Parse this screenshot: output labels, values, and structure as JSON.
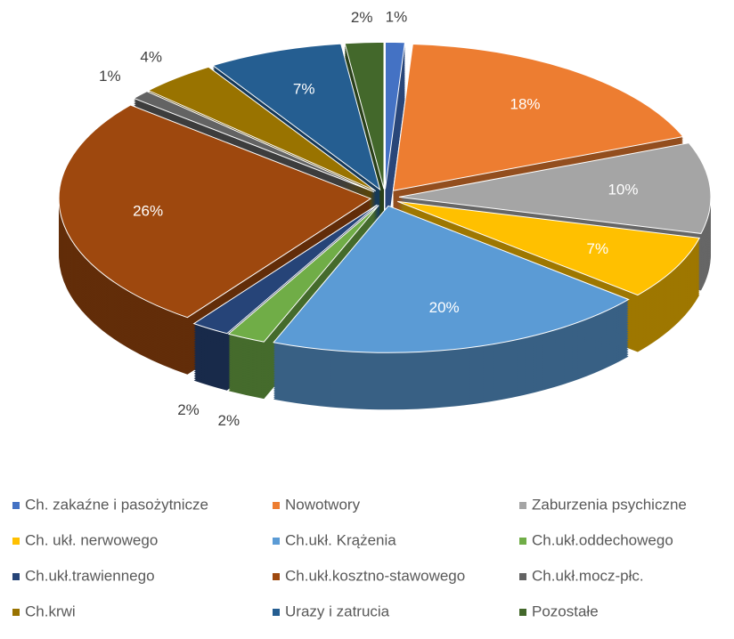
{
  "chart_data": {
    "type": "pie",
    "categories": [
      "Ch. zakaźne i pasożytnicze",
      "Nowotwory",
      "Zaburzenia psychiczne",
      "Ch. ukł. nerwowego",
      "Ch.ukł. Krążenia",
      "Ch.ukł.oddechowego",
      "Ch.ukł.trawiennego",
      "Ch.ukł.kosztno-stawowego",
      "Ch.ukł.mocz-płc.",
      "Ch.krwi",
      "Urazy i zatrucia",
      "Pozostałe"
    ],
    "values": [
      1,
      18,
      10,
      7,
      20,
      2,
      2,
      26,
      1,
      4,
      7,
      2
    ],
    "value_labels": [
      "1%",
      "18%",
      "10%",
      "7%",
      "20%",
      "2%",
      "2%",
      "26%",
      "1%",
      "4%",
      "7%",
      "2%"
    ],
    "colors": [
      "#4472c4",
      "#ed7d31",
      "#a5a5a5",
      "#ffc000",
      "#5b9bd5",
      "#70ad47",
      "#264478",
      "#9e480e",
      "#636363",
      "#997300",
      "#255e91",
      "#43682b"
    ],
    "legend": "bottom"
  }
}
